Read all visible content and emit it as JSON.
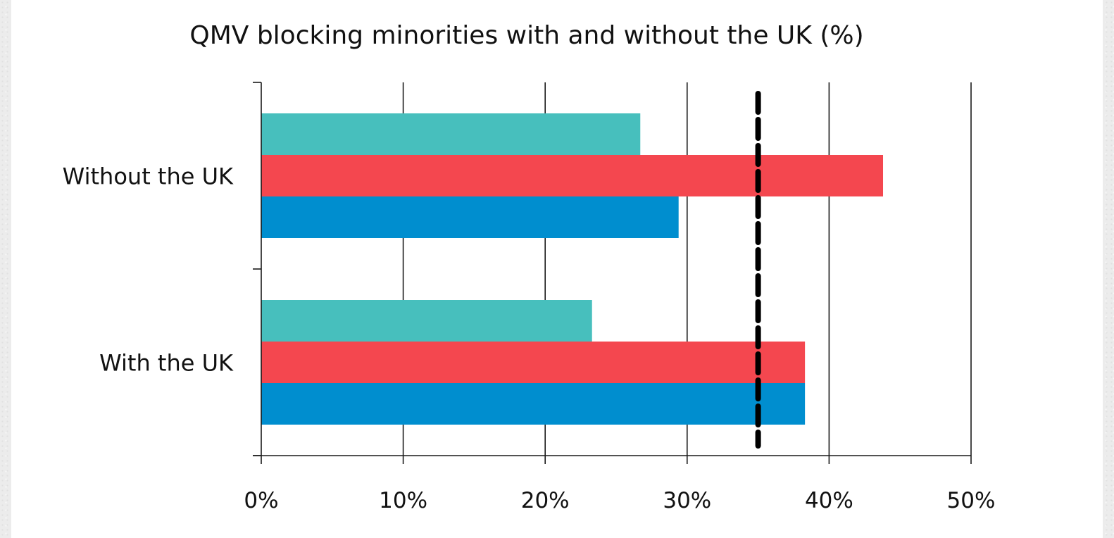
{
  "chart_data": {
    "type": "bar",
    "orientation": "horizontal",
    "title": "QMV blocking minorities with and without the UK (%)",
    "categories": [
      "Without the UK",
      "With the UK"
    ],
    "series": [
      {
        "values": [
          26.7,
          23.3
        ],
        "color": "#47bfbd"
      },
      {
        "values": [
          43.8,
          38.3
        ],
        "color": "#f4474f"
      },
      {
        "values": [
          29.4,
          38.3
        ],
        "color": "#008ecf"
      }
    ],
    "threshold": {
      "value": 35,
      "style": "dashed",
      "color": "#000000"
    },
    "xlim": [
      0,
      50
    ],
    "x_ticks": [
      0,
      10,
      20,
      30,
      40,
      50
    ],
    "x_tick_labels": [
      "0%",
      "10%",
      "20%",
      "30%",
      "40%",
      "50%"
    ],
    "grid": true,
    "legend": false
  }
}
